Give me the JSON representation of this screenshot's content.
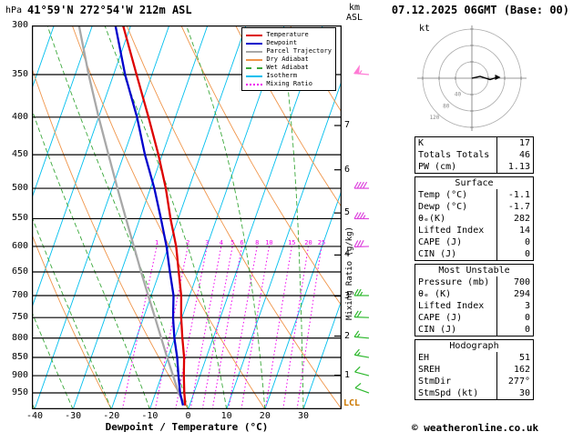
{
  "header": {
    "left_unit": "hPa",
    "title": "41°59'N 272°54'W 212m ASL",
    "alt_unit_top": "km",
    "alt_unit_bottom": "ASL",
    "datetime": "07.12.2025 06GMT (Base: 00)"
  },
  "legend": {
    "items": [
      {
        "label": "Temperature",
        "color": "#dd0000",
        "style": "solid"
      },
      {
        "label": "Dewpoint",
        "color": "#0000cc",
        "style": "solid"
      },
      {
        "label": "Parcel Trajectory",
        "color": "#a8a8a8",
        "style": "solid"
      },
      {
        "label": "Dry Adiabat",
        "color": "#f0954a",
        "style": "solid"
      },
      {
        "label": "Wet Adiabat",
        "color": "#3aa83a",
        "style": "dashed"
      },
      {
        "label": "Isotherm",
        "color": "#00bfee",
        "style": "solid"
      },
      {
        "label": "Mixing Ratio",
        "color": "#ee00ee",
        "style": "dotted"
      }
    ]
  },
  "chart_data": {
    "type": "line",
    "title": "Skew-T log-P sounding 41°59'N 272°54'W 212m ASL 07.12.2025 06GMT",
    "x_axis": {
      "label": "Dewpoint / Temperature (°C)",
      "ticks": [
        -40,
        -30,
        -20,
        -10,
        0,
        10,
        20,
        30
      ],
      "unit": "°C"
    },
    "y_axis": {
      "unit": "hPa",
      "scale": "log",
      "range": [
        300,
        1000
      ],
      "ticks": [
        300,
        350,
        400,
        450,
        500,
        550,
        600,
        650,
        700,
        750,
        800,
        850,
        900,
        950
      ]
    },
    "altitude_axis": {
      "unit": "km ASL",
      "ticks": [
        1,
        2,
        3,
        4,
        5,
        6,
        7
      ],
      "lcl_label": "LCL"
    },
    "mixing_ratio_label": "Mixing Ratio (g/kg)",
    "mixing_ratio_lines": [
      1,
      2,
      3,
      4,
      5,
      6,
      8,
      10,
      15,
      20,
      25
    ],
    "series": [
      {
        "name": "Temperature",
        "color": "#dd0000",
        "points_p_t": [
          [
            988,
            -1.1
          ],
          [
            950,
            -2.5
          ],
          [
            900,
            -4.2
          ],
          [
            850,
            -5.8
          ],
          [
            800,
            -8.0
          ],
          [
            750,
            -10.2
          ],
          [
            700,
            -12.2
          ],
          [
            650,
            -15.0
          ],
          [
            600,
            -18.0
          ],
          [
            550,
            -22.0
          ],
          [
            500,
            -26.0
          ],
          [
            450,
            -31.0
          ],
          [
            400,
            -37.0
          ],
          [
            350,
            -44.0
          ],
          [
            300,
            -52.0
          ]
        ]
      },
      {
        "name": "Dewpoint",
        "color": "#0000cc",
        "points_p_t": [
          [
            988,
            -1.7
          ],
          [
            950,
            -3.6
          ],
          [
            900,
            -5.6
          ],
          [
            850,
            -7.6
          ],
          [
            800,
            -10.1
          ],
          [
            750,
            -12.3
          ],
          [
            700,
            -14.2
          ],
          [
            650,
            -17.3
          ],
          [
            600,
            -20.5
          ],
          [
            550,
            -24.5
          ],
          [
            500,
            -29.0
          ],
          [
            450,
            -34.5
          ],
          [
            400,
            -40.0
          ],
          [
            350,
            -47.0
          ],
          [
            300,
            -54.0
          ]
        ]
      },
      {
        "name": "Parcel Trajectory",
        "color": "#a8a8a8",
        "points_p_t": [
          [
            988,
            -1.1
          ],
          [
            950,
            -4.0
          ],
          [
            900,
            -7.0
          ],
          [
            850,
            -10.2
          ],
          [
            800,
            -13.5
          ],
          [
            750,
            -17.0
          ],
          [
            700,
            -20.8
          ],
          [
            650,
            -24.8
          ],
          [
            600,
            -29.0
          ],
          [
            550,
            -33.6
          ],
          [
            500,
            -38.6
          ],
          [
            450,
            -44.0
          ],
          [
            400,
            -50.0
          ],
          [
            350,
            -56.5
          ],
          [
            300,
            -63.5
          ]
        ]
      }
    ],
    "wind_barbs": [
      {
        "pressure": 350,
        "speed_kt": 55,
        "dir_deg": 275,
        "color": "#ff7bd5"
      },
      {
        "pressure": 500,
        "speed_kt": 40,
        "dir_deg": 270,
        "color": "#dd44dd"
      },
      {
        "pressure": 550,
        "speed_kt": 35,
        "dir_deg": 270,
        "color": "#dd44dd"
      },
      {
        "pressure": 600,
        "speed_kt": 30,
        "dir_deg": 268,
        "color": "#dd44dd"
      },
      {
        "pressure": 700,
        "speed_kt": 25,
        "dir_deg": 270,
        "color": "#2db82d"
      },
      {
        "pressure": 750,
        "speed_kt": 20,
        "dir_deg": 272,
        "color": "#2db82d"
      },
      {
        "pressure": 800,
        "speed_kt": 15,
        "dir_deg": 275,
        "color": "#2db82d"
      },
      {
        "pressure": 850,
        "speed_kt": 15,
        "dir_deg": 280,
        "color": "#2db82d"
      },
      {
        "pressure": 900,
        "speed_kt": 10,
        "dir_deg": 285,
        "color": "#2db82d"
      },
      {
        "pressure": 950,
        "speed_kt": 10,
        "dir_deg": 290,
        "color": "#2db82d"
      }
    ]
  },
  "hodograph": {
    "unit": "kt",
    "ring_labels": [
      "40",
      "80",
      "120"
    ],
    "trace_uv_kt": [
      [
        0,
        0
      ],
      [
        18,
        -4
      ],
      [
        40,
        3
      ],
      [
        55,
        -2
      ]
    ]
  },
  "stats": {
    "sections": [
      {
        "rows": [
          {
            "label": "K",
            "value": "17"
          },
          {
            "label": "Totals Totals",
            "value": "46"
          },
          {
            "label": "PW (cm)",
            "value": "1.13"
          }
        ]
      },
      {
        "header": "Surface",
        "rows": [
          {
            "label": "Temp (°C)",
            "value": "-1.1"
          },
          {
            "label": "Dewp (°C)",
            "value": "-1.7"
          },
          {
            "label": "θₑ(K)",
            "value": "282"
          },
          {
            "label": "Lifted Index",
            "value": "14"
          },
          {
            "label": "CAPE (J)",
            "value": "0"
          },
          {
            "label": "CIN (J)",
            "value": "0"
          }
        ]
      },
      {
        "header": "Most Unstable",
        "rows": [
          {
            "label": "Pressure (mb)",
            "value": "700"
          },
          {
            "label": "θₑ (K)",
            "value": "294"
          },
          {
            "label": "Lifted Index",
            "value": "3"
          },
          {
            "label": "CAPE (J)",
            "value": "0"
          },
          {
            "label": "CIN (J)",
            "value": "0"
          }
        ]
      },
      {
        "header": "Hodograph",
        "rows": [
          {
            "label": "EH",
            "value": "51"
          },
          {
            "label": "SREH",
            "value": "162"
          },
          {
            "label": "StmDir",
            "value": "277°"
          },
          {
            "label": "StmSpd (kt)",
            "value": "30"
          }
        ]
      }
    ]
  },
  "footer": {
    "copyright": "© weatheronline.co.uk"
  }
}
